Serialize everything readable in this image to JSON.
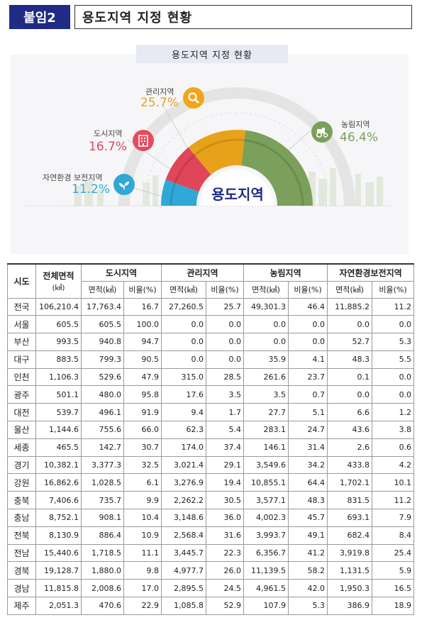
{
  "header": {
    "badge": "붙임2",
    "title": "용도지역 지정 현황"
  },
  "infographic": {
    "title": "용도지역 지정 현황",
    "center_label": "용도지역",
    "slices": [
      {
        "name": "농림지역",
        "pct": "46.4%",
        "value": 46.4,
        "color": "#7ba05b"
      },
      {
        "name": "관리지역",
        "pct": "25.7%",
        "value": 25.7,
        "color": "#e8a21a"
      },
      {
        "name": "도시지역",
        "pct": "16.7%",
        "value": 16.7,
        "color": "#e0455a"
      },
      {
        "name": "자연환경 보전지역",
        "pct": "11.2%",
        "value": 11.2,
        "color": "#2fa8d8"
      }
    ]
  },
  "table": {
    "headers": {
      "region": "시도",
      "total_area": "전체면적",
      "total_unit": "(㎢)",
      "groups": [
        "도시지역",
        "관리지역",
        "농림지역",
        "자연환경보전지역"
      ],
      "sub_area": "면적(㎢)",
      "sub_ratio": "비율(%)"
    },
    "rows": [
      [
        "전국",
        "106,210.4",
        "17,763.4",
        "16.7",
        "27,260.5",
        "25.7",
        "49,301.3",
        "46.4",
        "11,885.2",
        "11.2"
      ],
      [
        "서울",
        "605.5",
        "605.5",
        "100.0",
        "0.0",
        "0.0",
        "0.0",
        "0.0",
        "0.0",
        "0.0"
      ],
      [
        "부산",
        "993.5",
        "940.8",
        "94.7",
        "0.0",
        "0.0",
        "0.0",
        "0.0",
        "52.7",
        "5.3"
      ],
      [
        "대구",
        "883.5",
        "799.3",
        "90.5",
        "0.0",
        "0.0",
        "35.9",
        "4.1",
        "48.3",
        "5.5"
      ],
      [
        "인천",
        "1,106.3",
        "529.6",
        "47.9",
        "315.0",
        "28.5",
        "261.6",
        "23.7",
        "0.1",
        "0.0"
      ],
      [
        "광주",
        "501.1",
        "480.0",
        "95.8",
        "17.6",
        "3.5",
        "3.5",
        "0.7",
        "0.0",
        "0.0"
      ],
      [
        "대전",
        "539.7",
        "496.1",
        "91.9",
        "9.4",
        "1.7",
        "27.7",
        "5.1",
        "6.6",
        "1.2"
      ],
      [
        "울산",
        "1,144.6",
        "755.6",
        "66.0",
        "62.3",
        "5.4",
        "283.1",
        "24.7",
        "43.6",
        "3.8"
      ],
      [
        "세종",
        "465.5",
        "142.7",
        "30.7",
        "174.0",
        "37.4",
        "146.1",
        "31.4",
        "2.6",
        "0.6"
      ],
      [
        "경기",
        "10,382.1",
        "3,377.3",
        "32.5",
        "3,021.4",
        "29.1",
        "3,549.6",
        "34.2",
        "433.8",
        "4.2"
      ],
      [
        "강원",
        "16,862.6",
        "1,028.5",
        "6.1",
        "3,276.9",
        "19.4",
        "10,855.1",
        "64.4",
        "1,702.1",
        "10.1"
      ],
      [
        "충북",
        "7,406.6",
        "735.7",
        "9.9",
        "2,262.2",
        "30.5",
        "3,577.1",
        "48.3",
        "831.5",
        "11.2"
      ],
      [
        "충남",
        "8,752.1",
        "908.1",
        "10.4",
        "3,148.6",
        "36.0",
        "4,002.3",
        "45.7",
        "693.1",
        "7.9"
      ],
      [
        "전북",
        "8,130.9",
        "886.4",
        "10.9",
        "2,568.4",
        "31.6",
        "3,993.7",
        "49.1",
        "682.4",
        "8.4"
      ],
      [
        "전남",
        "15,440.6",
        "1,718.5",
        "11.1",
        "3,445.7",
        "22.3",
        "6,356.7",
        "41.2",
        "3,919.8",
        "25.4"
      ],
      [
        "경북",
        "19,128.7",
        "1,880.0",
        "9.8",
        "4,977.7",
        "26.0",
        "11,139.5",
        "58.2",
        "1,131.5",
        "5.9"
      ],
      [
        "경남",
        "11,815.8",
        "2,008.6",
        "17.0",
        "2,895.5",
        "24.5",
        "4,961.5",
        "42.0",
        "1,950.3",
        "16.5"
      ],
      [
        "제주",
        "2,051.3",
        "470.6",
        "22.9",
        "1,085.8",
        "52.9",
        "107.9",
        "5.3",
        "386.9",
        "18.9"
      ]
    ]
  }
}
